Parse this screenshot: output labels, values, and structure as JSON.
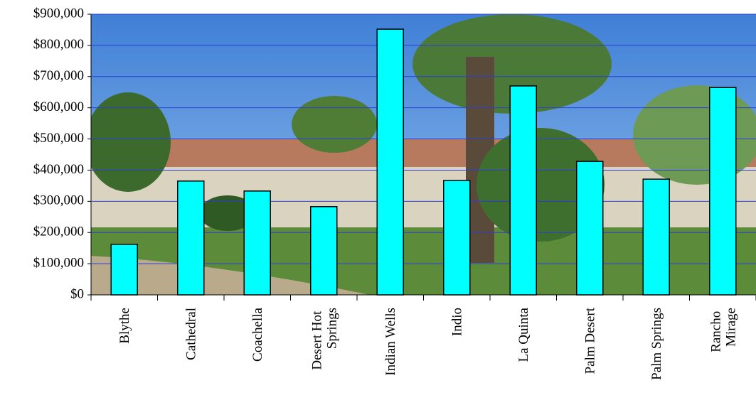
{
  "chart_data": {
    "type": "bar",
    "categories": [
      "Blythe",
      "Cathedral",
      "Coachella",
      "Desert Hot Springs",
      "Indian Wells",
      "Indio",
      "La Quinta",
      "Palm Desert",
      "Palm Springs",
      "Rancho Mirage"
    ],
    "values": [
      162000,
      365000,
      333000,
      283000,
      852000,
      367000,
      670000,
      428000,
      371000,
      665000
    ],
    "color": "#00ffff",
    "ylim": [
      0,
      900000
    ],
    "yticks": [
      {
        "value": 0,
        "label": "$0"
      },
      {
        "value": 100000,
        "label": "$100,000"
      },
      {
        "value": 200000,
        "label": "$200,000"
      },
      {
        "value": 300000,
        "label": "$300,000"
      },
      {
        "value": 400000,
        "label": "$400,000"
      },
      {
        "value": 500000,
        "label": "$500,000"
      },
      {
        "value": 600000,
        "label": "$600,000"
      },
      {
        "value": 700000,
        "label": "$700,000"
      },
      {
        "value": 800000,
        "label": "$800,000"
      },
      {
        "value": 900000,
        "label": "$900,000"
      }
    ],
    "grid": true
  }
}
